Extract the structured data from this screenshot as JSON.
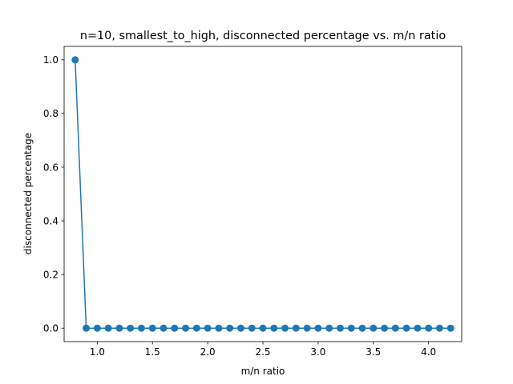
{
  "chart_data": {
    "type": "line",
    "title": "n=10, smallest_to_high, disconnected percentage vs. m/n ratio",
    "xlabel": "m/n ratio",
    "ylabel": "disconnected percentage",
    "xlim": [
      0.7,
      4.3
    ],
    "ylim": [
      -0.05,
      1.05
    ],
    "xticks": [
      1.0,
      1.5,
      2.0,
      2.5,
      3.0,
      3.5,
      4.0
    ],
    "xtick_labels": [
      "1.0",
      "1.5",
      "2.0",
      "2.5",
      "3.0",
      "3.5",
      "4.0"
    ],
    "yticks": [
      0.0,
      0.2,
      0.4,
      0.6,
      0.8,
      1.0
    ],
    "ytick_labels": [
      "0.0",
      "0.2",
      "0.4",
      "0.6",
      "0.8",
      "1.0"
    ],
    "grid": false,
    "marker": "circle",
    "color": "#1f77b4",
    "series": [
      {
        "x": [
          0.8,
          0.9,
          1.0,
          1.1,
          1.2,
          1.3,
          1.4,
          1.5,
          1.6,
          1.7,
          1.8,
          1.9,
          2.0,
          2.1,
          2.2,
          2.3,
          2.4,
          2.5,
          2.6,
          2.7,
          2.8,
          2.9,
          3.0,
          3.1,
          3.2,
          3.3,
          3.4,
          3.5,
          3.6,
          3.7,
          3.8,
          3.9,
          4.0,
          4.1,
          4.2
        ],
        "y": [
          1.0,
          0.0,
          0.0,
          0.0,
          0.0,
          0.0,
          0.0,
          0.0,
          0.0,
          0.0,
          0.0,
          0.0,
          0.0,
          0.0,
          0.0,
          0.0,
          0.0,
          0.0,
          0.0,
          0.0,
          0.0,
          0.0,
          0.0,
          0.0,
          0.0,
          0.0,
          0.0,
          0.0,
          0.0,
          0.0,
          0.0,
          0.0,
          0.0,
          0.0,
          0.0
        ]
      }
    ]
  }
}
